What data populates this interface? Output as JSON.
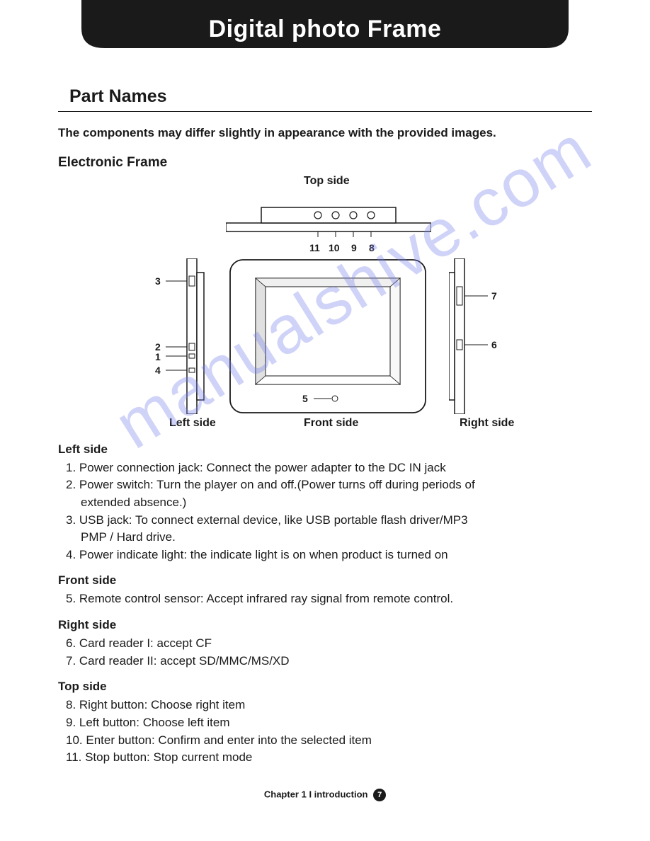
{
  "header": {
    "title": "Digital photo Frame",
    "bg": "#1a1a1a",
    "fg": "#ffffff"
  },
  "section_title": "Part Names",
  "intro": "The components may differ slightly in appearance with the provided images.",
  "subsection_title": "Electronic Frame",
  "diagram": {
    "labels": {
      "top": "Top side",
      "left": "Left side",
      "front": "Front side",
      "right": "Right side"
    },
    "callouts": {
      "left": [
        "1",
        "2",
        "3",
        "4"
      ],
      "front": [
        "5"
      ],
      "right": [
        "6",
        "7"
      ],
      "top": [
        "8",
        "9",
        "10",
        "11"
      ]
    },
    "stroke": "#1a1a1a",
    "fill": "#ffffff"
  },
  "groups": [
    {
      "title": "Left side",
      "items": [
        {
          "n": "1",
          "text": "Power connection jack:  Connect the power adapter to the DC IN jack"
        },
        {
          "n": "2",
          "text": "Power switch: Turn the player on and off.(Power turns off  during periods of",
          "cont": "extended absence.)"
        },
        {
          "n": "3",
          "text": "USB jack:  To connect external device, like USB portable  flash driver/MP3",
          "cont": "PMP / Hard drive."
        },
        {
          "n": "4",
          "text": "Power indicate light:  the indicate light is on when product  is turned on"
        }
      ]
    },
    {
      "title": "Front side",
      "items": [
        {
          "n": "5",
          "text": "Remote control sensor:  Accept infrared ray signal from remote control."
        }
      ]
    },
    {
      "title": "Right side",
      "items": [
        {
          "n": "6",
          "text": "Card reader I:  accept CF"
        },
        {
          "n": "7",
          "text": "Card reader II:   accept  SD/MMC/MS/XD"
        }
      ]
    },
    {
      "title": "Top side",
      "items": [
        {
          "n": "8",
          "text": "Right button:  Choose right item"
        },
        {
          "n": "9",
          "text": "Left button:   Choose left item"
        },
        {
          "n": "10",
          "text": "Enter button:  Confirm and enter into the selected item"
        },
        {
          "n": "11",
          "text": "Stop button:  Stop current mode"
        }
      ]
    }
  ],
  "footer": {
    "chapter": "Chapter 1 I introduction",
    "page": "7"
  },
  "watermark": "manualshive.com"
}
